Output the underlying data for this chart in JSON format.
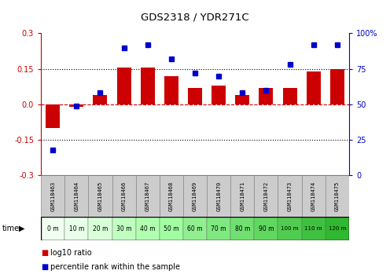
{
  "title": "GDS2318 / YDR271C",
  "categories": [
    "GSM118463",
    "GSM118464",
    "GSM118465",
    "GSM118466",
    "GSM118467",
    "GSM118468",
    "GSM118469",
    "GSM118470",
    "GSM118471",
    "GSM118472",
    "GSM118473",
    "GSM118474",
    "GSM118475"
  ],
  "time_labels": [
    "0 m",
    "10 m",
    "20 m",
    "30 m",
    "40 m",
    "50 m",
    "60 m",
    "70 m",
    "80 m",
    "90 m",
    "100 m",
    "110 m",
    "120 m"
  ],
  "log10_ratio": [
    -0.1,
    -0.01,
    0.04,
    0.155,
    0.155,
    0.12,
    0.07,
    0.08,
    0.04,
    0.07,
    0.07,
    0.14,
    0.15
  ],
  "percentile_rank": [
    18,
    49,
    58,
    90,
    92,
    82,
    72,
    70,
    58,
    60,
    78,
    92,
    92
  ],
  "bar_color": "#cc0000",
  "dot_color": "#0000cc",
  "ylim_left": [
    -0.3,
    0.3
  ],
  "ylim_right": [
    0,
    100
  ],
  "yticks_left": [
    -0.3,
    -0.15,
    0.0,
    0.15,
    0.3
  ],
  "yticks_right": [
    0,
    25,
    50,
    75,
    100
  ],
  "ytick_labels_right": [
    "0",
    "25",
    "50",
    "75",
    "100%"
  ],
  "hlines": [
    -0.15,
    0.0,
    0.15
  ],
  "time_cell_colors": [
    "#f0fff0",
    "#e8ffe8",
    "#d8ffd8",
    "#c0ffc0",
    "#b0ffb0",
    "#a0ffa0",
    "#90f090",
    "#80e880",
    "#70e070",
    "#60d860",
    "#50cc50",
    "#40c040",
    "#30b830"
  ],
  "bg_color": "white",
  "chart_bg": "white",
  "grid_color": "#000000",
  "legend_red_label": "log10 ratio",
  "legend_blue_label": "percentile rank within the sample"
}
